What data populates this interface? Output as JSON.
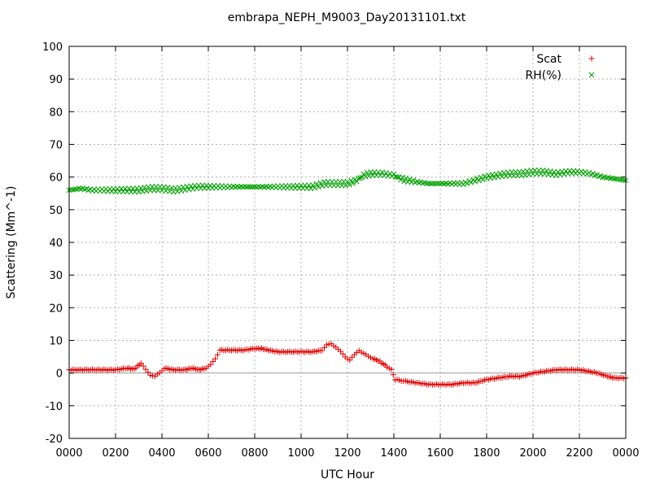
{
  "chart_data": {
    "type": "scatter",
    "title": "embrapa_NEPH_M9003_Day20131101.txt",
    "xlabel": "UTC Hour",
    "ylabel": "Scattering (Mm^-1)",
    "xlim": [
      0,
      24
    ],
    "ylim": [
      -20,
      100
    ],
    "xtick_values": [
      0,
      2,
      4,
      6,
      8,
      10,
      12,
      14,
      16,
      18,
      20,
      22,
      24
    ],
    "xtick_labels": [
      "0000",
      "0200",
      "0400",
      "0600",
      "0800",
      "1000",
      "1200",
      "1400",
      "1600",
      "1800",
      "2000",
      "2200",
      "0000"
    ],
    "yticks": [
      -20,
      -10,
      0,
      10,
      20,
      30,
      40,
      50,
      60,
      70,
      80,
      90,
      100
    ],
    "grid": true,
    "zero_line": true,
    "legend_position": "top-right",
    "series": [
      {
        "name": "Scat",
        "marker": "+",
        "color": "#dd0000",
        "points": [
          [
            0.0,
            1.0
          ],
          [
            0.5,
            1.0
          ],
          [
            1.0,
            1.0
          ],
          [
            1.5,
            1.0
          ],
          [
            2.0,
            1.0
          ],
          [
            2.5,
            1.5
          ],
          [
            2.8,
            1.2
          ],
          [
            3.1,
            3.0
          ],
          [
            3.3,
            1.0
          ],
          [
            3.5,
            -0.5
          ],
          [
            3.7,
            -1.0
          ],
          [
            3.9,
            0.0
          ],
          [
            4.1,
            1.5
          ],
          [
            4.5,
            1.0
          ],
          [
            5.0,
            1.0
          ],
          [
            5.3,
            1.5
          ],
          [
            5.6,
            1.0
          ],
          [
            5.9,
            1.5
          ],
          [
            6.1,
            2.5
          ],
          [
            6.3,
            4.5
          ],
          [
            6.5,
            7.0
          ],
          [
            7.0,
            7.0
          ],
          [
            7.5,
            7.0
          ],
          [
            8.0,
            7.5
          ],
          [
            8.3,
            7.5
          ],
          [
            8.6,
            7.0
          ],
          [
            9.0,
            6.5
          ],
          [
            9.5,
            6.5
          ],
          [
            10.0,
            6.5
          ],
          [
            10.5,
            6.5
          ],
          [
            10.9,
            7.0
          ],
          [
            11.1,
            8.5
          ],
          [
            11.3,
            9.0
          ],
          [
            11.5,
            8.0
          ],
          [
            11.7,
            6.5
          ],
          [
            11.9,
            5.0
          ],
          [
            12.1,
            4.0
          ],
          [
            12.3,
            5.5
          ],
          [
            12.5,
            7.0
          ],
          [
            12.7,
            6.0
          ],
          [
            12.9,
            5.0
          ],
          [
            13.1,
            4.5
          ],
          [
            13.4,
            3.5
          ],
          [
            13.7,
            2.0
          ],
          [
            13.9,
            1.0
          ],
          [
            14.05,
            -2.0
          ],
          [
            14.5,
            -2.5
          ],
          [
            15.0,
            -3.0
          ],
          [
            15.5,
            -3.5
          ],
          [
            16.0,
            -3.5
          ],
          [
            16.5,
            -3.5
          ],
          [
            17.0,
            -3.0
          ],
          [
            17.5,
            -3.0
          ],
          [
            18.0,
            -2.0
          ],
          [
            18.5,
            -1.5
          ],
          [
            19.0,
            -1.0
          ],
          [
            19.5,
            -1.0
          ],
          [
            20.0,
            0.0
          ],
          [
            20.5,
            0.5
          ],
          [
            21.0,
            1.0
          ],
          [
            21.5,
            1.0
          ],
          [
            22.0,
            1.0
          ],
          [
            22.4,
            0.5
          ],
          [
            22.8,
            0.0
          ],
          [
            23.2,
            -1.0
          ],
          [
            23.5,
            -1.5
          ],
          [
            24.0,
            -1.5
          ]
        ]
      },
      {
        "name": "RH(%)",
        "marker": "x",
        "color": "#00a000",
        "points": [
          [
            0.0,
            56.0
          ],
          [
            0.5,
            56.5
          ],
          [
            1.0,
            56.0
          ],
          [
            1.5,
            56.0
          ],
          [
            2.0,
            56.0
          ],
          [
            2.5,
            56.0
          ],
          [
            3.0,
            56.0
          ],
          [
            3.5,
            56.5
          ],
          [
            4.0,
            56.5
          ],
          [
            4.5,
            56.0
          ],
          [
            5.0,
            56.5
          ],
          [
            5.5,
            57.0
          ],
          [
            6.0,
            57.0
          ],
          [
            6.5,
            57.0
          ],
          [
            7.0,
            57.0
          ],
          [
            7.5,
            57.0
          ],
          [
            8.0,
            57.0
          ],
          [
            8.5,
            57.0
          ],
          [
            9.0,
            57.0
          ],
          [
            9.5,
            57.0
          ],
          [
            10.0,
            57.0
          ],
          [
            10.5,
            57.0
          ],
          [
            11.0,
            58.0
          ],
          [
            11.5,
            58.0
          ],
          [
            12.0,
            58.0
          ],
          [
            12.4,
            59.0
          ],
          [
            12.7,
            60.5
          ],
          [
            13.0,
            61.0
          ],
          [
            13.5,
            61.0
          ],
          [
            14.0,
            60.5
          ],
          [
            14.3,
            59.5
          ],
          [
            14.6,
            59.0
          ],
          [
            15.0,
            58.5
          ],
          [
            15.5,
            58.0
          ],
          [
            16.0,
            58.0
          ],
          [
            16.5,
            58.0
          ],
          [
            17.0,
            58.0
          ],
          [
            17.5,
            59.0
          ],
          [
            18.0,
            60.0
          ],
          [
            18.5,
            60.5
          ],
          [
            19.0,
            61.0
          ],
          [
            19.5,
            61.0
          ],
          [
            20.0,
            61.5
          ],
          [
            20.5,
            61.5
          ],
          [
            21.0,
            61.0
          ],
          [
            21.5,
            61.5
          ],
          [
            22.0,
            61.5
          ],
          [
            22.5,
            61.0
          ],
          [
            23.0,
            60.0
          ],
          [
            23.5,
            59.5
          ],
          [
            24.0,
            59.0
          ]
        ]
      }
    ]
  }
}
